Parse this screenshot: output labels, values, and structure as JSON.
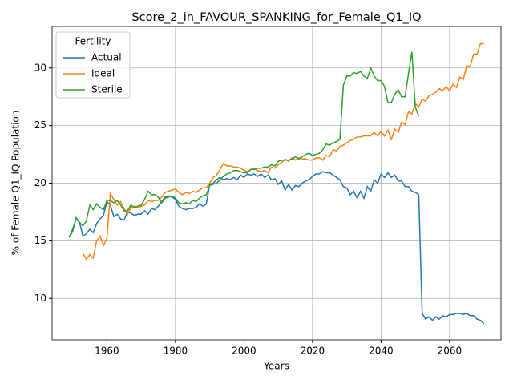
{
  "chart_data": {
    "type": "line",
    "title": "Score_2_in_FAVOUR_SPANKING_for_Female_Q1_IQ",
    "x_label": "Years",
    "y_label": "% of Female Q1_IQ Population",
    "legend_title": "Fertility",
    "legend": "upper left",
    "grid": true,
    "xlim": [
      1944,
      2075
    ],
    "ylim": [
      6.4,
      33.6
    ],
    "xticks": [
      1960,
      1980,
      2000,
      2020,
      2040,
      2060
    ],
    "yticks": [
      10,
      15,
      20,
      25,
      30
    ],
    "x": [
      1949,
      1950,
      1951,
      1952,
      1953,
      1954,
      1955,
      1956,
      1957,
      1958,
      1959,
      1960,
      1961,
      1962,
      1963,
      1964,
      1965,
      1966,
      1967,
      1968,
      1969,
      1970,
      1971,
      1972,
      1973,
      1974,
      1975,
      1976,
      1977,
      1978,
      1979,
      1980,
      1981,
      1982,
      1983,
      1984,
      1985,
      1986,
      1987,
      1988,
      1989,
      1990,
      1991,
      1992,
      1993,
      1994,
      1995,
      1996,
      1997,
      1998,
      1999,
      2000,
      2001,
      2002,
      2003,
      2004,
      2005,
      2006,
      2007,
      2008,
      2009,
      2010,
      2011,
      2012,
      2013,
      2014,
      2015,
      2016,
      2017,
      2018,
      2019,
      2020,
      2021,
      2022,
      2023,
      2024,
      2025,
      2026,
      2027,
      2028,
      2029,
      2030,
      2031,
      2032,
      2033,
      2034,
      2035,
      2036,
      2037,
      2038,
      2039,
      2040,
      2041,
      2042,
      2043,
      2044,
      2045,
      2046,
      2047,
      2048,
      2049,
      2050,
      2051,
      2052,
      2053,
      2054,
      2055,
      2056,
      2057,
      2058,
      2059,
      2060,
      2061,
      2062,
      2063,
      2064,
      2065,
      2066,
      2067,
      2068,
      2069,
      2070
    ],
    "series": [
      {
        "name": "Actual",
        "color": "#1f77b4",
        "values": [
          15.3,
          16,
          16.9,
          16.6,
          15.4,
          15.6,
          16,
          15.7,
          16.5,
          16.9,
          17.2,
          18.4,
          18.1,
          17.1,
          17.3,
          16.9,
          16.8,
          17.5,
          17.4,
          17.2,
          17.3,
          17.3,
          17.6,
          17.3,
          17.8,
          17.7,
          18,
          18.4,
          18.8,
          18.9,
          18.8,
          18.6,
          18,
          17.8,
          17.7,
          17.8,
          17.8,
          17.9,
          18.2,
          18,
          18.2,
          19.9,
          20,
          20.3,
          20.5,
          20.3,
          20.4,
          20.3,
          20.5,
          20.3,
          20.7,
          20.5,
          20.8,
          20.7,
          20.8,
          20.6,
          20.8,
          20.5,
          20.7,
          20.3,
          20.4,
          19.9,
          20.2,
          19.4,
          19.9,
          19.4,
          19.8,
          19.7,
          20,
          20.2,
          20.3,
          20.6,
          20.8,
          20.8,
          21,
          20.9,
          20.9,
          20.7,
          20.5,
          20.3,
          19.7,
          19.6,
          19,
          19.3,
          18.7,
          19.3,
          18.7,
          19.7,
          19.3,
          20.3,
          20,
          20.8,
          20.5,
          20.9,
          20.5,
          20.7,
          20.2,
          20.2,
          19.7,
          19.7,
          19.3,
          19.2,
          19,
          8.7,
          8.2,
          8.4,
          8.1,
          8.4,
          8.2,
          8.5,
          8.4,
          8.6,
          8.6,
          8.7,
          8.7,
          8.6,
          8.7,
          8.5,
          8.5,
          8.2,
          8.1,
          7.8
        ]
      },
      {
        "name": "Ideal",
        "color": "#ff7f0e",
        "values": [
          null,
          null,
          null,
          null,
          13.9,
          13.4,
          13.8,
          13.5,
          15,
          15.4,
          14.6,
          15.2,
          19.1,
          18.6,
          18.1,
          18.4,
          17.8,
          17.3,
          17.9,
          18,
          17.9,
          18,
          18.1,
          18.5,
          18.4,
          18.5,
          18.5,
          18.8,
          19.2,
          19.3,
          19.4,
          19.5,
          19.2,
          19,
          19.2,
          19.1,
          19.3,
          19.2,
          19.4,
          19.6,
          19.6,
          20,
          20.5,
          20.7,
          21.2,
          21.7,
          21.5,
          21.5,
          21.4,
          21.4,
          21.3,
          21.1,
          21,
          21.2,
          21.3,
          21.1,
          21,
          21.1,
          20.9,
          21.4,
          21.3,
          21.6,
          21.8,
          22.1,
          21.9,
          22.2,
          22,
          22.2,
          22.1,
          22.1,
          22,
          22,
          22.2,
          22.2,
          22,
          22.4,
          22.3,
          22.9,
          22.8,
          23.2,
          23.3,
          23.5,
          23.7,
          23.8,
          24,
          24,
          24.1,
          24.1,
          24.1,
          24.4,
          24.1,
          24.5,
          24.1,
          24.6,
          23.8,
          24.7,
          24.4,
          25.3,
          25.1,
          26.2,
          26,
          26.9,
          26.6,
          27.3,
          27.1,
          27.6,
          27.7,
          27.9,
          28.2,
          28,
          28.4,
          28,
          28.6,
          28.3,
          29.2,
          29,
          30.2,
          30.1,
          31.2,
          31.2,
          32.1,
          32.1
        ]
      },
      {
        "name": "Sterile",
        "color": "#2ca02c",
        "values": [
          15.3,
          15.8,
          17,
          16.6,
          16.3,
          16.7,
          18.1,
          17.7,
          18.2,
          17.9,
          17.7,
          18.5,
          18.5,
          18.3,
          18.5,
          18.1,
          17.6,
          17.6,
          18.1,
          17.9,
          18,
          18.1,
          18.6,
          19.3,
          19,
          19,
          18.8,
          18.3,
          18.7,
          18.8,
          18.9,
          18.7,
          18.3,
          18.2,
          18.3,
          18.2,
          18.5,
          18.4,
          18.7,
          18.9,
          19,
          19.8,
          19.9,
          20,
          20.3,
          20.6,
          20.8,
          20.9,
          21.1,
          21.1,
          21,
          20.9,
          20.9,
          21.2,
          21.2,
          21.3,
          21.3,
          21.4,
          21.4,
          21.6,
          21.5,
          21.9,
          22,
          22,
          22,
          22.1,
          22.3,
          22.1,
          22.3,
          22.5,
          22.6,
          22.4,
          22.5,
          22.6,
          22.9,
          23.4,
          23.3,
          23.5,
          23.6,
          23.8,
          28.5,
          29.3,
          29.3,
          29.6,
          29.5,
          29.7,
          29.3,
          29.1,
          30,
          29.3,
          28.9,
          28.9,
          28.4,
          27,
          27,
          27.7,
          28.1,
          27.5,
          27.5,
          29.5,
          31.4,
          26.6,
          25.8,
          null,
          null,
          null,
          null,
          null,
          null,
          null,
          null,
          null,
          null,
          null,
          null,
          null,
          null,
          null,
          null,
          null,
          null,
          null
        ]
      }
    ]
  }
}
